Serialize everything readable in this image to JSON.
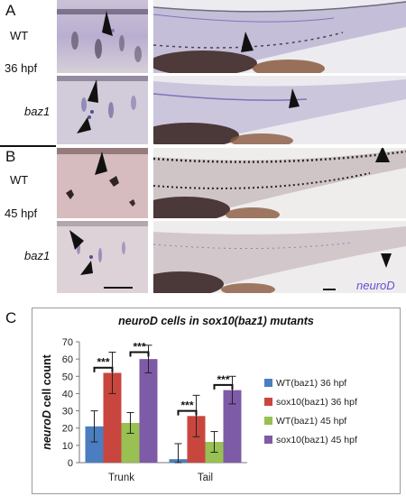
{
  "panels": {
    "a": "A",
    "b": "B",
    "c": "C"
  },
  "rows": {
    "wt": "WT",
    "stage36": "36 hpf",
    "mutant": "baz1",
    "stage45": "45 hpf"
  },
  "stain_label": "neuroD",
  "colors": {
    "wt36": "#4a7ec0",
    "sox36": "#c9463f",
    "wt45": "#98c052",
    "sox45": "#7e5ba6",
    "stain_text": "#6a4cd8"
  },
  "chart_data": {
    "type": "bar",
    "title_parts": [
      "neuroD",
      " cells  in ",
      "sox10(baz1)",
      " mutants"
    ],
    "ylabel_parts": [
      "neuroD",
      " cell count"
    ],
    "categories": [
      "Trunk",
      "Tail"
    ],
    "ylim": [
      0,
      70
    ],
    "yticks": [
      "0",
      "10",
      "20",
      "30",
      "40",
      "50",
      "60",
      "70"
    ],
    "series": [
      {
        "name": "WT(baz1) 36 hpf",
        "values": [
          21,
          2
        ],
        "errors": [
          9,
          9
        ],
        "color": "#4a7ec0"
      },
      {
        "name": "sox10(baz1) 36 hpf",
        "values": [
          52,
          27
        ],
        "errors": [
          12,
          12
        ],
        "color": "#c9463f"
      },
      {
        "name": "WT(baz1) 45 hpf",
        "values": [
          23,
          12
        ],
        "errors": [
          6,
          6
        ],
        "color": "#98c052"
      },
      {
        "name": "sox10(baz1) 45 hpf",
        "values": [
          60,
          42
        ],
        "errors": [
          8,
          8
        ],
        "color": "#7e5ba6"
      }
    ],
    "significance": [
      {
        "category": 0,
        "between": [
          0,
          1
        ],
        "label": "***",
        "level": 55
      },
      {
        "category": 0,
        "between": [
          2,
          3
        ],
        "label": "***",
        "level": 64
      },
      {
        "category": 1,
        "between": [
          0,
          1
        ],
        "label": "***",
        "level": 30
      },
      {
        "category": 1,
        "between": [
          2,
          3
        ],
        "label": "***",
        "level": 45
      }
    ],
    "legend_position": "right",
    "grid": false
  }
}
